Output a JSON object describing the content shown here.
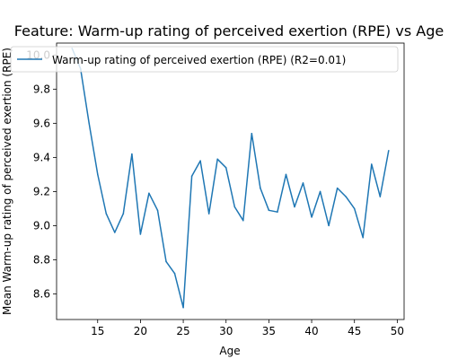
{
  "chart_data": {
    "type": "line",
    "title": "Feature: Warm-up rating of perceived exertion (RPE) vs Age",
    "xlabel": "Age",
    "ylabel": "Mean Warm-up rating of perceived exertion (RPE)",
    "xlim": [
      10.2,
      50.8
    ],
    "ylim": [
      8.45,
      10.07
    ],
    "x_ticks": [
      15,
      20,
      25,
      30,
      35,
      40,
      45,
      50
    ],
    "y_ticks": [
      8.6,
      8.8,
      9.0,
      9.2,
      9.4,
      9.6,
      9.8,
      10.0
    ],
    "x_tick_labels": [
      "15",
      "20",
      "25",
      "30",
      "35",
      "40",
      "45",
      "50"
    ],
    "y_tick_labels": [
      "8.6",
      "8.8",
      "9.0",
      "9.2",
      "9.4",
      "9.6",
      "9.8",
      "10.0"
    ],
    "grid": false,
    "legend_position": "upper left",
    "series": [
      {
        "name": "Warm-up rating of perceived exertion (RPE) (R2=0.01)",
        "color": "#1f77b4",
        "x": [
          12,
          13,
          14,
          15,
          16,
          17,
          18,
          19,
          20,
          21,
          22,
          23,
          24,
          25,
          26,
          27,
          28,
          29,
          30,
          31,
          32,
          33,
          34,
          35,
          36,
          37,
          38,
          39,
          40,
          41,
          42,
          43,
          44,
          45,
          46,
          47,
          48,
          49
        ],
        "y": [
          10.04,
          9.92,
          9.6,
          9.3,
          9.07,
          8.96,
          9.07,
          9.42,
          8.95,
          9.19,
          9.09,
          8.79,
          8.72,
          8.52,
          9.29,
          9.38,
          9.07,
          9.39,
          9.34,
          9.11,
          9.03,
          9.54,
          9.22,
          9.09,
          9.08,
          9.3,
          9.11,
          9.25,
          9.05,
          9.2,
          9.0,
          9.22,
          9.17,
          9.1,
          8.93,
          9.36,
          9.17,
          9.44
        ]
      }
    ]
  }
}
